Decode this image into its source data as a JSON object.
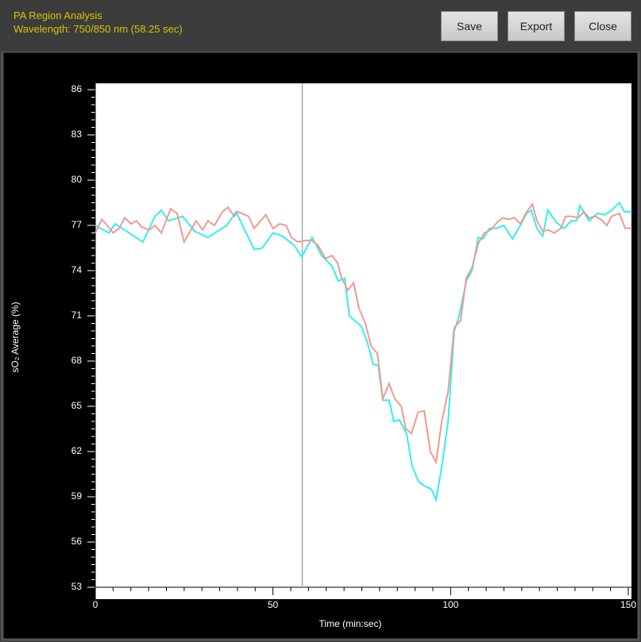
{
  "header": {
    "title": "PA Region Analysis",
    "subtitle": "Wavelength: 750/850 nm (58.25 sec)",
    "buttons": [
      "Save",
      "Export",
      "Close"
    ]
  },
  "chart_data": {
    "type": "line",
    "xlabel": "Time (min:sec)",
    "ylabel": "sO₂ Average  (%)",
    "xlim": [
      0,
      150
    ],
    "ylim": [
      53,
      86
    ],
    "xticks": [
      0,
      50,
      100,
      150
    ],
    "yticks": [
      53,
      56,
      59,
      62,
      65,
      68,
      71,
      74,
      77,
      80,
      83,
      86
    ],
    "cursor_x": 58.25,
    "series": [
      {
        "color": "#33eeee",
        "x": [
          0,
          3.8,
          5.6,
          13.4,
          16.8,
          18.6,
          20.6,
          24.6,
          28,
          31.7,
          37,
          39.6,
          44.7,
          47,
          50,
          52.5,
          55.9,
          58.1,
          61,
          63.7,
          66.6,
          68.4,
          70.2,
          71.5,
          74.9,
          76.5,
          78.2,
          79.6,
          80.9,
          82.7,
          84,
          85.6,
          87.6,
          89.2,
          91,
          92.8,
          94.6,
          95.9,
          97.5,
          99.3,
          101,
          102.4,
          104.4,
          106,
          107.8,
          109.1,
          110.9,
          112.9,
          115,
          117.4,
          119.6,
          121.4,
          122.7,
          124.3,
          125.9,
          127.4,
          129.7,
          131.9,
          134,
          135.5,
          136.4,
          139,
          141.3,
          143.5,
          145.3,
          147.5,
          148.9,
          151
        ],
        "values": [
          77.0,
          76.5,
          77.1,
          75.9,
          77.6,
          78.0,
          77.3,
          77.6,
          76.6,
          76.2,
          77.0,
          77.9,
          75.4,
          75.5,
          76.5,
          76.3,
          75.7,
          74.9,
          76.2,
          75.0,
          74.3,
          73.3,
          73.5,
          71.0,
          70.3,
          69.3,
          67.8,
          67.7,
          65.4,
          65.4,
          64.0,
          64.1,
          63.2,
          61.0,
          60.0,
          59.7,
          59.5,
          58.8,
          61.0,
          64.0,
          70.0,
          71.0,
          73.3,
          74.0,
          76.2,
          76.1,
          76.8,
          76.8,
          77.0,
          76.1,
          77.0,
          77.8,
          78.0,
          76.8,
          76.3,
          78.0,
          77.2,
          76.8,
          77.3,
          77.3,
          78.3,
          77.3,
          77.8,
          77.7,
          78.0,
          78.5,
          77.9,
          77.9
        ]
      },
      {
        "color": "#f09a90",
        "x": [
          0,
          1.8,
          3.4,
          5,
          6.7,
          8.3,
          10.1,
          11.6,
          13,
          15.2,
          16.8,
          18.6,
          21.2,
          23,
          25,
          28.4,
          30.2,
          31.7,
          33.5,
          35.8,
          37.3,
          39.1,
          40.2,
          43.1,
          44.7,
          48,
          50,
          51.9,
          53.7,
          55.2,
          57,
          59.2,
          60.8,
          62.6,
          64.8,
          66.6,
          68.2,
          69.3,
          71.1,
          72.7,
          74.2,
          76,
          77.6,
          79.4,
          80.9,
          82.7,
          84.3,
          86.1,
          87.4,
          89,
          90.8,
          92.6,
          94.3,
          95.9,
          97.5,
          99.3,
          101,
          102.8,
          104.4,
          106,
          107.8,
          109.5,
          111.3,
          113.1,
          114.7,
          116.3,
          118,
          119.6,
          121.4,
          123,
          124.3,
          125.9,
          127.4,
          129.2,
          131,
          132.4,
          134,
          135.9,
          137.5,
          139,
          140.8,
          142.2,
          144,
          145.3,
          147.5,
          149.1,
          151
        ],
        "values": [
          76.5,
          77.4,
          77.0,
          76.5,
          76.8,
          77.5,
          77.1,
          77.3,
          76.9,
          76.7,
          77.0,
          76.5,
          78.1,
          77.8,
          75.9,
          77.3,
          76.7,
          77.3,
          77.0,
          77.9,
          78.2,
          77.6,
          77.9,
          77.6,
          76.8,
          77.7,
          76.8,
          77.1,
          77.0,
          76.2,
          75.9,
          76.0,
          76.0,
          75.7,
          74.8,
          75.0,
          74.5,
          73.5,
          72.7,
          73.2,
          71.5,
          70.5,
          69.0,
          68.5,
          65.5,
          66.5,
          65.5,
          65.0,
          63.5,
          63.2,
          64.6,
          64.7,
          62.0,
          61.3,
          64.0,
          66.0,
          70.2,
          70.7,
          73.5,
          74.2,
          75.8,
          76.5,
          76.7,
          77.2,
          77.5,
          77.4,
          77.5,
          77.1,
          77.9,
          78.4,
          77.3,
          76.6,
          76.7,
          76.5,
          76.8,
          77.6,
          77.6,
          77.5,
          77.9,
          77.5,
          77.6,
          77.4,
          77.0,
          77.6,
          77.8,
          76.8,
          76.8
        ]
      }
    ]
  }
}
